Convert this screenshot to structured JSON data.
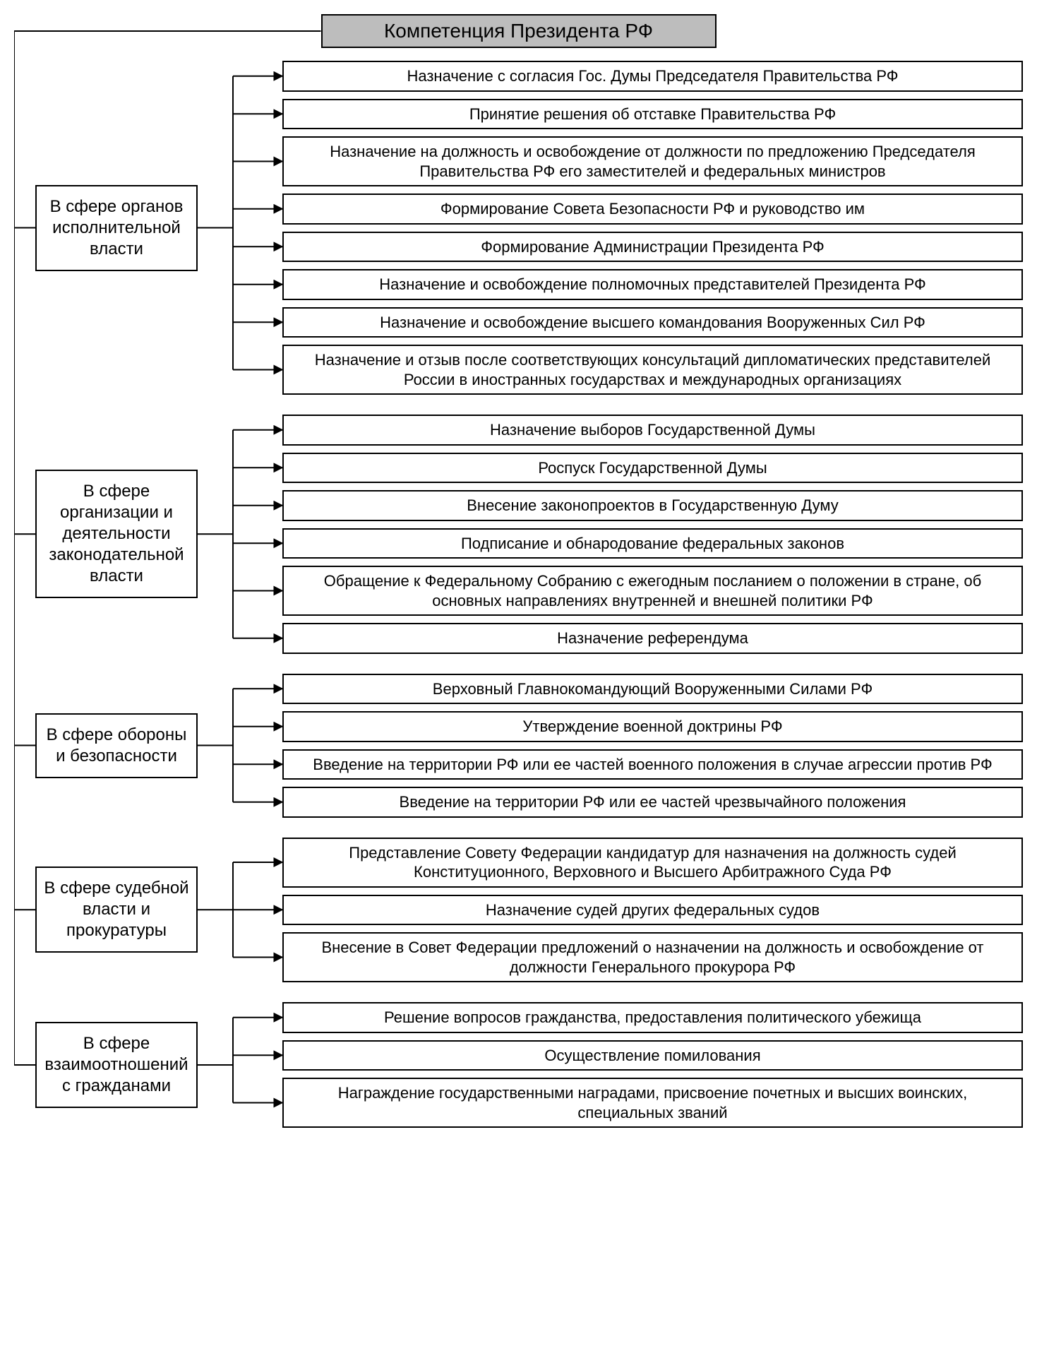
{
  "diagram": {
    "type": "tree",
    "title": "Компетенция Президента РФ",
    "title_bg": "#bdbdbd",
    "border_color": "#000000",
    "background_color": "#ffffff",
    "box_border_width": 2,
    "arrow_line_width": 2,
    "title_fontsize": 28,
    "category_fontsize": 24,
    "item_fontsize": 22,
    "sections": [
      {
        "category": "В сфере органов исполнительной власти",
        "items": [
          "Назначение с согласия Гос. Думы Председателя Правительства РФ",
          "Принятие решения об отставке Правительства РФ",
          "Назначение на должность и освобождение от должности по предложению Председателя Правительства РФ его заместителей и федеральных министров",
          "Формирование Совета Безопасности РФ и руководство им",
          "Формирование Администрации Президента РФ",
          "Назначение и освобождение полномочных представителей Президента РФ",
          "Назначение и освобождение высшего командования Вооруженных Сил РФ",
          "Назначение и отзыв после соответствующих консультаций дипломатических представителей России в иностранных государствах и международных организациях"
        ]
      },
      {
        "category": "В сфере организации и деятельности законодательной власти",
        "items": [
          "Назначение выборов Государственной Думы",
          "Роспуск Государственной Думы",
          "Внесение законопроектов в Государственную Думу",
          "Подписание и обнародование федеральных законов",
          "Обращение к Федеральному Собранию с ежегодным посланием о положении в стране, об основных направлениях внутренней и внешней политики РФ",
          "Назначение референдума"
        ]
      },
      {
        "category": "В сфере обороны и безопасности",
        "items": [
          "Верховный Главнокомандующий Вооруженными Силами РФ",
          "Утверждение военной доктрины РФ",
          "Введение на территории РФ или ее частей военного положения в случае агрессии против РФ",
          "Введение на территории РФ или ее частей чрезвычайного положения"
        ]
      },
      {
        "category": "В сфере судебной власти и прокуратуры",
        "items": [
          "Представление Совету Федерации кандидатур для назначения на должность судей Конституционного, Верховного и Высшего Арбитражного Суда РФ",
          "Назначение судей других федеральных судов",
          "Внесение в Совет Федерации предложений о назначении на должность и освобождение от должности Генерального прокурора РФ"
        ]
      },
      {
        "category": "В сфере взаимоотно­шений с гражданами",
        "items": [
          "Решение вопросов гражданства, предоставления политического убежища",
          "Осуществление помилования",
          "Награждение государственными наградами, присвоение почетных и высших воинских, специальных званий"
        ]
      }
    ]
  }
}
